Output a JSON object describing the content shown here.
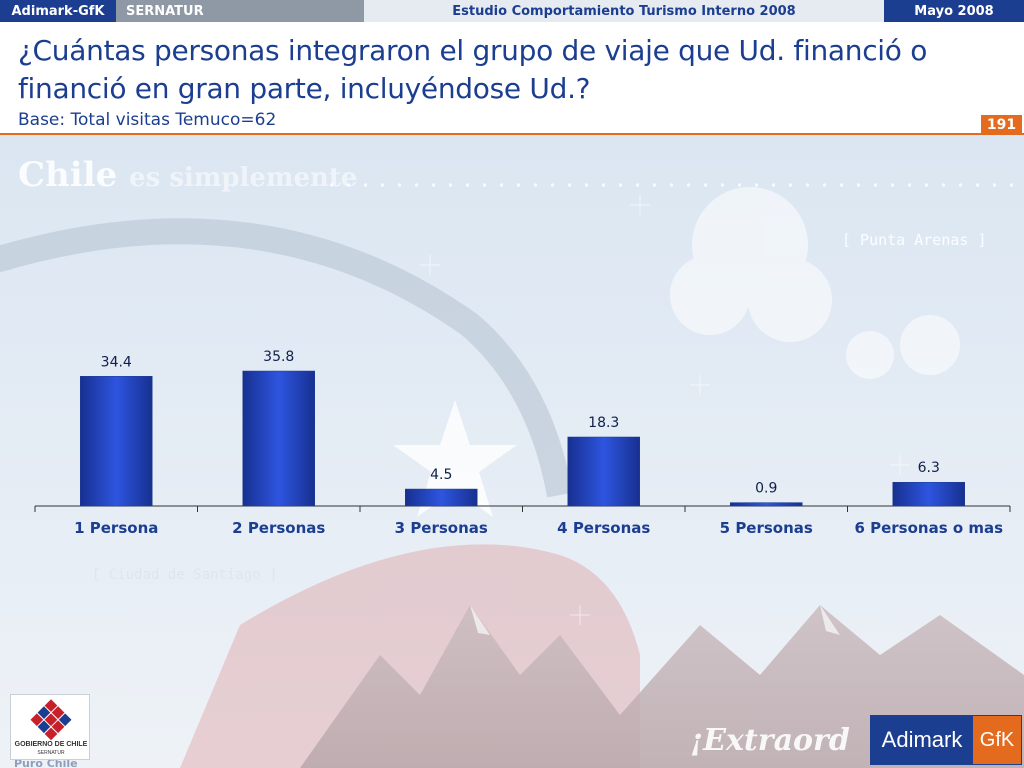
{
  "topbar": {
    "brand": "Adimark-GfK",
    "client": "SERNATUR",
    "study": "Estudio Comportamiento Turismo Interno 2008",
    "date": "Mayo 2008"
  },
  "header": {
    "question": "¿Cuántas personas integraron el grupo de viaje que Ud. financió o financió en gran parte, incluyéndose Ud.?",
    "base": "Base: Total visitas Temuco=62",
    "page_number": "191"
  },
  "background": {
    "watermark_main": "Chile",
    "watermark_rest": "es simplemente",
    "punta_arenas": "[ Punta Arenas ]",
    "ciudad": "[ Ciudad de Santiago ]",
    "extraordinario": "¡Extraord",
    "puro_chile": "Puro Chile"
  },
  "logos": {
    "gobierno_line1": "GOBIERNO DE CHILE",
    "gobierno_line2": "SERNATUR",
    "adimark": "Adimark",
    "gfk": "GfK"
  },
  "colors": {
    "brand_blue": "#1c3e91",
    "accent_orange": "#e46a1e",
    "bar_fill": "#1f3fb8"
  },
  "chart_data": {
    "type": "bar",
    "title": "",
    "xlabel": "",
    "ylabel": "",
    "categories": [
      "1 Persona",
      "2 Personas",
      "3 Personas",
      "4 Personas",
      "5 Personas",
      "6 Personas o mas"
    ],
    "values": [
      34.4,
      35.8,
      4.5,
      18.3,
      0.9,
      6.3
    ],
    "value_labels": [
      "34.4",
      "35.8",
      "4.5",
      "18.3",
      "0.9",
      "6.3"
    ],
    "ylim": [
      0,
      35.8
    ],
    "grid": false,
    "legend": "none"
  }
}
